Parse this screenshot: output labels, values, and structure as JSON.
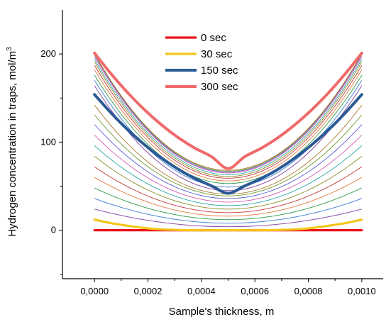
{
  "chart_data": {
    "type": "line",
    "title": "",
    "xlabel": "Sample's thickness, m",
    "ylabel": "Hydrogen concentration in traps, mol/m",
    "ylabel_superscript": "3",
    "xlim": [
      -0.00012,
      0.00108
    ],
    "ylim": [
      -55,
      250
    ],
    "x_ticks": [
      {
        "value": 0.0,
        "label": "0,0000"
      },
      {
        "value": 0.0002,
        "label": "0,0002"
      },
      {
        "value": 0.0004,
        "label": "0,0004"
      },
      {
        "value": 0.0006,
        "label": "0,0006"
      },
      {
        "value": 0.0008,
        "label": "0,0008"
      },
      {
        "value": 0.001,
        "label": "0,0010"
      }
    ],
    "y_ticks": [
      {
        "value": 0,
        "label": "0"
      },
      {
        "value": 100,
        "label": "100"
      },
      {
        "value": 200,
        "label": "200"
      }
    ],
    "grid": false,
    "legend_position": "top-center",
    "x": [
      0.0,
      6.25e-05,
      0.000125,
      0.0001875,
      0.00025,
      0.0003125,
      0.000375,
      0.0004375,
      0.0005,
      0.0005625,
      0.000625,
      0.0006875,
      0.00075,
      0.0008125,
      0.000875,
      0.0009375,
      0.001
    ],
    "series": [
      {
        "name": "0 sec",
        "color": "#e8141b",
        "width": 3.2,
        "values": [
          0,
          0,
          0,
          0,
          0,
          0,
          0,
          0,
          0,
          0,
          0,
          0,
          0,
          0,
          0,
          0,
          0
        ]
      },
      {
        "name": "30 sec",
        "color": "#f6c51d",
        "width": 3.2,
        "values": [
          12,
          8,
          5,
          2.5,
          1,
          0.3,
          0,
          0,
          0,
          0,
          0,
          0.3,
          1,
          2.5,
          5,
          8,
          12
        ]
      },
      {
        "name": "150 sec",
        "color": "#2a5a94",
        "width": 4,
        "values": [
          154,
          132.9,
          113.8,
          96.9,
          82.1,
          69.4,
          58.9,
          50.4,
          42,
          50.4,
          58.9,
          69.4,
          82.1,
          96.9,
          113.8,
          132.9,
          154
        ]
      },
      {
        "name": "300 sec",
        "color": "#f06a6a",
        "width": 4,
        "values": [
          201,
          177.3,
          155.8,
          136.6,
          119.8,
          105.3,
          93.3,
          83.6,
          70,
          83.6,
          93.3,
          105.3,
          119.8,
          136.6,
          155.8,
          177.3,
          201
        ]
      }
    ],
    "intermediate_curves": {
      "count": 22,
      "colors": [
        "#7b3fa0",
        "#3a7bd5",
        "#2e9a4a",
        "#e07b39",
        "#c03a3a",
        "#8e8e2a",
        "#2aa6a6",
        "#d45ab0",
        "#5a5ad4",
        "#6a9a2e",
        "#b07830"
      ],
      "edge_values": [
        24,
        36,
        48,
        60,
        72,
        84,
        96,
        108,
        120,
        131,
        142,
        164,
        170,
        176,
        182,
        187,
        191,
        194,
        197,
        199,
        200,
        200
      ],
      "mid_values": [
        4,
        8,
        12,
        16,
        20,
        24,
        28,
        32,
        36,
        39,
        41,
        45,
        49,
        53,
        56,
        59,
        61,
        63,
        65,
        66,
        67,
        68
      ]
    }
  }
}
